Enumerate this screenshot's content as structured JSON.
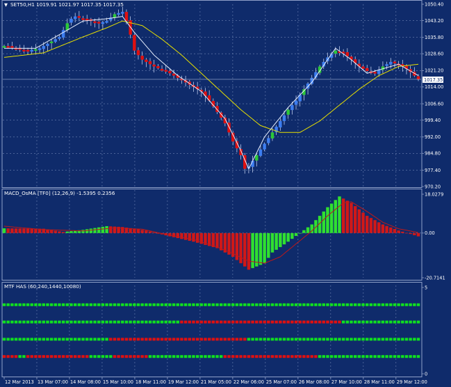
{
  "colors": {
    "background": "#0f2b6b",
    "grid": "#6f84b4",
    "frame": "#8fa0c8",
    "text": "#ffffff",
    "bull_candle": "#3c7df0",
    "bear_candle": "#e01010",
    "bull_body": "#2cc838",
    "wick": "#d7e2ff",
    "ma_yellow": "#e8e000",
    "ma_white": "#e8f0ff",
    "macd_up": "#30e030",
    "macd_down": "#d01818",
    "signal": "#c01818",
    "has_green": "#10e020",
    "has_red": "#e01010",
    "price_marker_bg": "#ffffff",
    "price_marker_text": "#0f2b6b"
  },
  "main_panel": {
    "header": "SET50,H1  1019.91 1021.97 1017.35 1017.35",
    "price_marker": "1017.35",
    "y_ticks": [
      "1050.40",
      "1043.20",
      "1035.80",
      "1028.60",
      "1021.20",
      "1014.00",
      "1006.60",
      "999.40",
      "992.00",
      "984.80",
      "977.40",
      "970.20"
    ]
  },
  "macd_panel": {
    "header": "MACD_OsMA [TF0] (12,26,9)  -1.5395  0.2356",
    "y_ticks": [
      "18.0279",
      "0.00",
      "-20.7141"
    ]
  },
  "has_panel": {
    "header": "MTF HAS (60,240,1440,10080)",
    "y_ticks": [
      "5",
      "0"
    ]
  },
  "x_axis": {
    "labels": [
      "12 Mar 2013",
      "13 Mar 07:00",
      "14 Mar 08:00",
      "15 Mar 10:00",
      "18 Mar 11:00",
      "19 Mar 12:00",
      "21 Mar 05:00",
      "22 Mar 06:00",
      "25 Mar 07:00",
      "26 Mar 08:00",
      "27 Mar 10:00",
      "28 Mar 11:00",
      "29 Mar 12:00"
    ]
  },
  "chart_data": [
    {
      "type": "candlestick",
      "title": "SET50,H1",
      "ohlc_last": {
        "open": 1019.91,
        "high": 1021.97,
        "low": 1017.35,
        "close": 1017.35
      },
      "ylim": [
        970.2,
        1050.4
      ],
      "close_path": [
        [
          0,
          1032
        ],
        [
          3,
          1031
        ],
        [
          6,
          1030
        ],
        [
          9,
          1031
        ],
        [
          12,
          1034
        ],
        [
          14,
          1036
        ],
        [
          15,
          1039
        ],
        [
          16,
          1042
        ],
        [
          17,
          1044
        ],
        [
          18,
          1045
        ],
        [
          20,
          1044
        ],
        [
          22,
          1043
        ],
        [
          24,
          1042
        ],
        [
          26,
          1043
        ],
        [
          28,
          1046
        ],
        [
          30,
          1047
        ],
        [
          31,
          1043
        ],
        [
          32,
          1037
        ],
        [
          33,
          1030
        ],
        [
          35,
          1026
        ],
        [
          38,
          1023
        ],
        [
          42,
          1020
        ],
        [
          45,
          1017
        ],
        [
          48,
          1014
        ],
        [
          50,
          1012
        ],
        [
          52,
          1008
        ],
        [
          54,
          1003
        ],
        [
          56,
          998
        ],
        [
          58,
          990
        ],
        [
          60,
          984
        ],
        [
          61,
          978
        ],
        [
          62,
          979
        ],
        [
          64,
          984
        ],
        [
          66,
          989
        ],
        [
          68,
          994
        ],
        [
          70,
          999
        ],
        [
          72,
          1004
        ],
        [
          74,
          1008
        ],
        [
          76,
          1013
        ],
        [
          78,
          1018
        ],
        [
          80,
          1023
        ],
        [
          82,
          1027
        ],
        [
          84,
          1030
        ],
        [
          86,
          1029
        ],
        [
          88,
          1026
        ],
        [
          90,
          1023
        ],
        [
          92,
          1021
        ],
        [
          94,
          1020
        ],
        [
          96,
          1023
        ],
        [
          98,
          1025
        ],
        [
          100,
          1024
        ],
        [
          102,
          1022
        ],
        [
          104,
          1019
        ],
        [
          105,
          1017.35
        ]
      ],
      "ma_slow_path": [
        [
          0,
          1027
        ],
        [
          10,
          1029
        ],
        [
          20,
          1036
        ],
        [
          26,
          1040
        ],
        [
          30,
          1043
        ],
        [
          35,
          1041
        ],
        [
          40,
          1035
        ],
        [
          45,
          1028
        ],
        [
          50,
          1020
        ],
        [
          55,
          1012
        ],
        [
          60,
          1004
        ],
        [
          65,
          997
        ],
        [
          70,
          994
        ],
        [
          75,
          994
        ],
        [
          80,
          999
        ],
        [
          85,
          1006
        ],
        [
          90,
          1013
        ],
        [
          95,
          1019
        ],
        [
          100,
          1023
        ],
        [
          105,
          1024
        ]
      ],
      "ma_fast_path": [
        [
          0,
          1031
        ],
        [
          8,
          1031
        ],
        [
          14,
          1037
        ],
        [
          20,
          1043
        ],
        [
          26,
          1044
        ],
        [
          30,
          1045
        ],
        [
          33,
          1038
        ],
        [
          38,
          1028
        ],
        [
          44,
          1019
        ],
        [
          50,
          1012
        ],
        [
          56,
          1000
        ],
        [
          60,
          986
        ],
        [
          62,
          978
        ],
        [
          66,
          992
        ],
        [
          72,
          1005
        ],
        [
          78,
          1016
        ],
        [
          82,
          1026
        ],
        [
          84,
          1031
        ],
        [
          88,
          1026
        ],
        [
          92,
          1020
        ],
        [
          96,
          1022
        ],
        [
          100,
          1024
        ],
        [
          105,
          1019
        ]
      ]
    },
    {
      "type": "bar",
      "title": "MACD_OsMA [TF0] (12,26,9)",
      "values_last": {
        "macd": -1.5395,
        "signal": 0.2356
      },
      "ylim": [
        -20.7141,
        18.0279
      ],
      "macd_path": [
        [
          0,
          2.2
        ],
        [
          10,
          2.0
        ],
        [
          15,
          0.5
        ],
        [
          20,
          1.5
        ],
        [
          26,
          3.2
        ],
        [
          30,
          2.8
        ],
        [
          36,
          1.2
        ],
        [
          42,
          -1.5
        ],
        [
          48,
          -4
        ],
        [
          54,
          -7
        ],
        [
          58,
          -11
        ],
        [
          62,
          -17
        ],
        [
          66,
          -14
        ],
        [
          68,
          -9
        ],
        [
          72,
          -4
        ],
        [
          75,
          0
        ],
        [
          78,
          4
        ],
        [
          82,
          12
        ],
        [
          85,
          17
        ],
        [
          88,
          14
        ],
        [
          92,
          8
        ],
        [
          96,
          4
        ],
        [
          100,
          1.2
        ],
        [
          105,
          -1.5395
        ]
      ],
      "signal_path": [
        [
          0,
          3.2
        ],
        [
          10,
          1.6
        ],
        [
          20,
          1.0
        ],
        [
          28,
          2.4
        ],
        [
          35,
          1.8
        ],
        [
          42,
          -1.0
        ],
        [
          48,
          -3.0
        ],
        [
          54,
          -6.5
        ],
        [
          58,
          -9.5
        ],
        [
          62,
          -13
        ],
        [
          66,
          -14
        ],
        [
          70,
          -11
        ],
        [
          74,
          -5
        ],
        [
          78,
          1
        ],
        [
          82,
          8
        ],
        [
          86,
          14
        ],
        [
          88,
          14.5
        ],
        [
          92,
          10
        ],
        [
          96,
          5
        ],
        [
          100,
          2
        ],
        [
          105,
          0.2356
        ]
      ]
    },
    {
      "type": "heatmap",
      "title": "MTF HAS (60,240,1440,10080)",
      "ylim": [
        0,
        5
      ],
      "rows": [
        {
          "name": "60",
          "red_ranges": [
            [
              0,
              3
            ],
            [
              6,
              21
            ],
            [
              28,
              36
            ],
            [
              56,
              79
            ]
          ]
        },
        {
          "name": "240",
          "red_ranges": [
            [
              27,
              61
            ]
          ]
        },
        {
          "name": "1440",
          "red_ranges": [
            [
              45,
              85
            ]
          ]
        },
        {
          "name": "10080",
          "red_ranges": []
        }
      ]
    }
  ]
}
